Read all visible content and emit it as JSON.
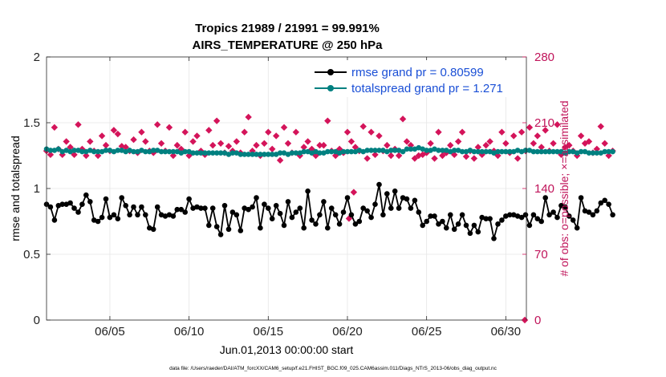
{
  "chart_data": {
    "type": "line",
    "title_line1": "Tropics 21989 / 21991 = 99.991%",
    "title_line2": "AIRS_TEMPERATURE @ 250 hPa",
    "xlabel": "Jun.01,2013 00:00:00 start",
    "ylabel_left": "rmse and totalspread",
    "ylabel_right": "# of obs: o=possible; ×=assimilated",
    "footnote": "data file: /Users/raeder/DAI/ATM_forcXX/CAM6_setup/f.e21.FHIST_BGC.f09_025.CAM6assim.011/Diags_NTrS_2013-06/obs_diag_output.nc",
    "xlim": [
      1,
      31.3
    ],
    "ylim_left": [
      0,
      2
    ],
    "ylim_right": [
      0,
      280
    ],
    "x_ticks": [
      5,
      10,
      15,
      20,
      25,
      30
    ],
    "x_tick_labels": [
      "06/05",
      "06/10",
      "06/15",
      "06/20",
      "06/25",
      "06/30"
    ],
    "y_left_ticks": [
      0,
      0.5,
      1,
      1.5,
      2
    ],
    "y_left_tick_labels": [
      "0",
      "0.5",
      "1",
      "1.5",
      "2"
    ],
    "y_right_ticks": [
      0,
      70,
      140,
      210,
      280
    ],
    "y_right_tick_labels": [
      "0",
      "70",
      "140",
      "210",
      "280"
    ],
    "colors": {
      "rmse": "#000000",
      "spread": "#008080",
      "obs": "#d4145a",
      "grid": "#e6e6e6"
    },
    "legend": {
      "position": "top-right",
      "entries": [
        "rmse grand pr = 0.80599",
        "totalspread grand pr = 1.271"
      ]
    },
    "series": [
      {
        "name": "rmse",
        "axis": "left",
        "x_start": 1.0,
        "x_step": 0.25,
        "values": [
          0.88,
          0.86,
          0.76,
          0.87,
          0.88,
          0.88,
          0.89,
          0.85,
          0.82,
          0.88,
          0.95,
          0.9,
          0.76,
          0.75,
          0.78,
          0.92,
          0.78,
          0.8,
          0.77,
          0.93,
          0.87,
          0.8,
          0.86,
          0.8,
          0.86,
          0.8,
          0.7,
          0.69,
          0.86,
          0.8,
          0.79,
          0.8,
          0.79,
          0.84,
          0.84,
          0.82,
          0.92,
          0.85,
          0.86,
          0.85,
          0.85,
          0.72,
          0.85,
          0.71,
          0.65,
          0.87,
          0.69,
          0.82,
          0.8,
          0.68,
          0.85,
          0.84,
          0.86,
          0.93,
          0.7,
          0.88,
          0.85,
          0.77,
          0.87,
          0.81,
          0.72,
          0.9,
          0.78,
          0.82,
          0.85,
          0.7,
          0.98,
          0.76,
          0.73,
          0.8,
          0.9,
          0.7,
          0.85,
          0.8,
          0.73,
          0.82,
          0.93,
          0.8,
          0.73,
          0.75,
          0.85,
          0.83,
          0.78,
          0.88,
          1.03,
          0.8,
          0.96,
          0.85,
          0.98,
          0.85,
          0.93,
          0.92,
          0.85,
          0.91,
          0.82,
          0.72,
          0.75,
          0.79,
          0.79,
          0.73,
          0.75,
          0.7,
          0.8,
          0.69,
          0.73,
          0.8,
          0.72,
          0.66,
          0.72,
          0.67,
          0.78,
          0.77,
          0.77,
          0.62,
          0.73,
          0.76,
          0.79,
          0.8,
          0.8,
          0.79,
          0.78,
          0.8,
          0.72,
          0.8,
          0.77,
          0.75,
          0.93,
          0.8,
          0.82,
          0.78,
          0.87,
          0.86,
          0.79,
          0.76,
          0.7,
          0.93,
          0.83,
          0.82,
          0.8,
          0.83,
          0.89,
          0.91,
          0.88,
          0.8
        ]
      },
      {
        "name": "totalspread",
        "axis": "left",
        "x_start": 1.0,
        "x_step": 0.25,
        "values": [
          1.3,
          1.29,
          1.29,
          1.3,
          1.28,
          1.29,
          1.28,
          1.29,
          1.29,
          1.28,
          1.28,
          1.29,
          1.28,
          1.28,
          1.28,
          1.29,
          1.29,
          1.28,
          1.29,
          1.29,
          1.28,
          1.29,
          1.28,
          1.28,
          1.29,
          1.28,
          1.28,
          1.29,
          1.29,
          1.28,
          1.28,
          1.28,
          1.28,
          1.28,
          1.27,
          1.28,
          1.28,
          1.27,
          1.27,
          1.27,
          1.27,
          1.27,
          1.27,
          1.27,
          1.27,
          1.27,
          1.26,
          1.27,
          1.27,
          1.26,
          1.26,
          1.26,
          1.26,
          1.26,
          1.26,
          1.26,
          1.26,
          1.26,
          1.26,
          1.27,
          1.27,
          1.26,
          1.27,
          1.27,
          1.27,
          1.28,
          1.28,
          1.27,
          1.28,
          1.27,
          1.27,
          1.28,
          1.28,
          1.28,
          1.27,
          1.28,
          1.28,
          1.28,
          1.28,
          1.29,
          1.28,
          1.29,
          1.29,
          1.29,
          1.29,
          1.29,
          1.28,
          1.29,
          1.29,
          1.29,
          1.28,
          1.3,
          1.3,
          1.3,
          1.31,
          1.3,
          1.29,
          1.29,
          1.3,
          1.29,
          1.29,
          1.29,
          1.28,
          1.29,
          1.29,
          1.28,
          1.28,
          1.29,
          1.28,
          1.28,
          1.28,
          1.28,
          1.28,
          1.27,
          1.28,
          1.28,
          1.28,
          1.28,
          1.28,
          1.29,
          1.28,
          1.29,
          1.29,
          1.28,
          1.28,
          1.28,
          1.28,
          1.28,
          1.28,
          1.28,
          1.28,
          1.27,
          1.28,
          1.28,
          1.27,
          1.28,
          1.28,
          1.27,
          1.27,
          1.27,
          1.27,
          1.28,
          1.28,
          1.28
        ]
      }
    ],
    "obs_possible": {
      "name": "# obs possible",
      "axis": "right",
      "values": [
        [
          31.2,
          0
        ]
      ]
    },
    "obs_assimilated": {
      "name": "# obs assimilated",
      "axis": "right",
      "x_start": 1.0,
      "x_step": 0.25,
      "values": [
        180,
        176,
        205,
        182,
        176,
        190,
        184,
        176,
        208,
        182,
        175,
        190,
        180,
        175,
        196,
        186,
        180,
        202,
        198,
        185,
        184,
        180,
        192,
        178,
        200,
        190,
        180,
        178,
        208,
        188,
        180,
        205,
        175,
        186,
        182,
        200,
        175,
        190,
        196,
        180,
        176,
        202,
        186,
        212,
        188,
        178,
        185,
        180,
        190,
        178,
        200,
        216,
        180,
        186,
        175,
        188,
        200,
        182,
        196,
        170,
        205,
        188,
        178,
        200,
        175,
        184,
        190,
        182,
        175,
        186,
        186,
        212,
        180,
        175,
        182,
        178,
        200,
        190,
        184,
        180,
        206,
        172,
        200,
        176,
        196,
        180,
        186,
        175,
        182,
        175,
        214,
        190,
        186,
        172,
        175,
        176,
        178,
        188,
        172,
        200,
        175,
        178,
        186,
        176,
        190,
        200,
        174,
        180,
        172,
        184,
        176,
        186,
        190,
        180,
        175,
        200,
        188,
        178,
        196,
        172,
        200,
        180,
        205,
        188,
        196,
        184,
        202,
        180,
        188,
        208,
        176,
        184,
        186,
        180,
        175,
        196,
        188,
        190,
        178,
        182,
        206,
        188,
        175,
        180
      ]
    },
    "obs_assimilated_extra": {
      "values": [
        [
          20.1,
          108
        ],
        [
          20.4,
          136
        ]
      ]
    }
  }
}
